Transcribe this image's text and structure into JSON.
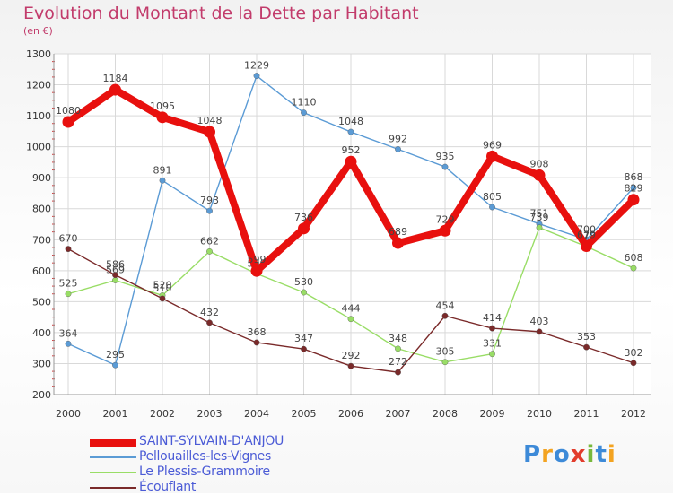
{
  "chart_data": {
    "type": "line",
    "title": "Evolution du Montant de la Dette par Habitant",
    "subtitle": "(en €)",
    "x": [
      "2000",
      "2001",
      "2002",
      "2003",
      "2004",
      "2005",
      "2006",
      "2007",
      "2008",
      "2009",
      "2010",
      "2011",
      "2012"
    ],
    "ylim": [
      200,
      1300
    ],
    "yticks": [
      200,
      300,
      400,
      500,
      600,
      700,
      800,
      900,
      1000,
      1100,
      1200,
      1300
    ],
    "grid": true,
    "legend_position": "bottom-left",
    "series": [
      {
        "name": "SAINT-SYLVAIN-D'ANJOU",
        "color": "#e8100e",
        "values": [
          1080,
          1184,
          1095,
          1048,
          599,
          736,
          952,
          689,
          729,
          969,
          908,
          679,
          829
        ]
      },
      {
        "name": "Pellouailles-les-Vignes",
        "color": "#5b9bd5",
        "values": [
          364,
          295,
          891,
          793,
          1229,
          1110,
          1048,
          992,
          935,
          805,
          751,
          700,
          868
        ]
      },
      {
        "name": "Le Plessis-Grammoire",
        "color": "#99dd66",
        "values": [
          525,
          569,
          520,
          662,
          590,
          530,
          444,
          348,
          305,
          331,
          739,
          678,
          608
        ]
      },
      {
        "name": "Écouflant",
        "color": "#7a2a2a",
        "values": [
          670,
          586,
          510,
          432,
          368,
          347,
          292,
          272,
          454,
          414,
          403,
          353,
          302
        ]
      }
    ]
  },
  "logo": {
    "text": "Proxiti",
    "letters": [
      "P",
      "r",
      "o",
      "x",
      "i",
      "t",
      "i"
    ],
    "colors": [
      "#3d8ad8",
      "#f3a321",
      "#3d8ad8",
      "#e23c2c",
      "#78b83c",
      "#3d8ad8",
      "#f3a321"
    ]
  }
}
